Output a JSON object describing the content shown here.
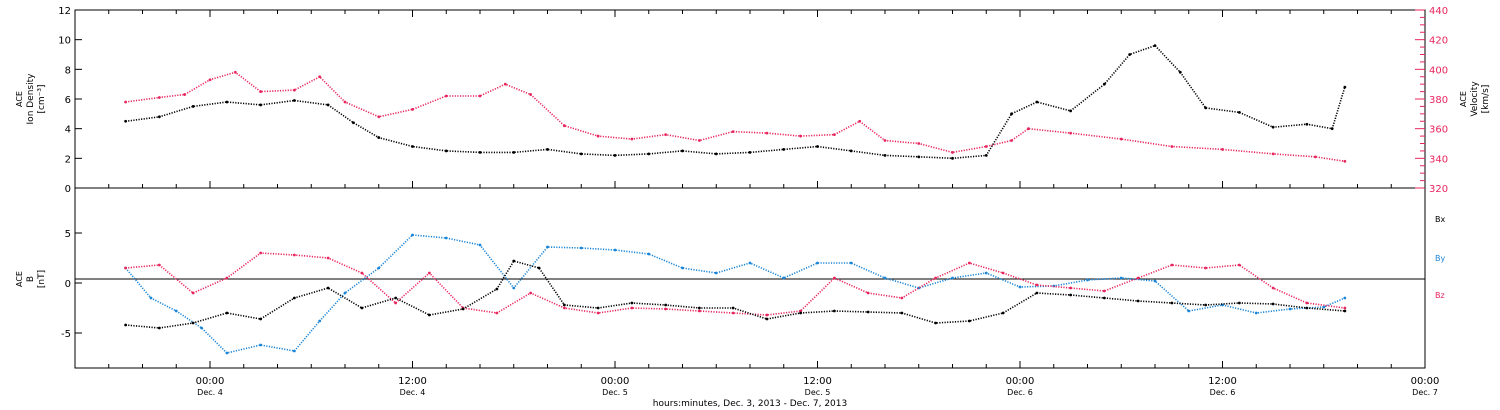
{
  "chart_data": [
    {
      "type": "scatter",
      "panel": "top",
      "ylabel_left": [
        "ACE",
        "Ion Density",
        "[cm⁻³]"
      ],
      "ylabel_right": [
        "ACE",
        "Velocity",
        "[km/s]"
      ],
      "ylim": [
        0,
        12
      ],
      "yticks": [
        0,
        2,
        4,
        6,
        8,
        10,
        12
      ],
      "y2lim": [
        320,
        440
      ],
      "y2ticks": [
        320,
        340,
        360,
        380,
        400,
        420,
        440
      ],
      "colors": {
        "density": "#000000",
        "velocity": "#e8265e"
      },
      "grid": false,
      "series": [
        {
          "name": "Ion Density",
          "color": "#000000",
          "points": [
            [
              "2013-12-03T19:00",
              4.5
            ],
            [
              "2013-12-03T21:00",
              4.8
            ],
            [
              "2013-12-03T23:00",
              5.5
            ],
            [
              "2013-12-04T01:00",
              5.8
            ],
            [
              "2013-12-04T03:00",
              5.6
            ],
            [
              "2013-12-04T05:00",
              5.9
            ],
            [
              "2013-12-04T07:00",
              5.6
            ],
            [
              "2013-12-04T08:30",
              4.4
            ],
            [
              "2013-12-04T10:00",
              3.4
            ],
            [
              "2013-12-04T12:00",
              2.8
            ],
            [
              "2013-12-04T14:00",
              2.5
            ],
            [
              "2013-12-04T16:00",
              2.4
            ],
            [
              "2013-12-04T18:00",
              2.4
            ],
            [
              "2013-12-04T20:00",
              2.6
            ],
            [
              "2013-12-04T22:00",
              2.3
            ],
            [
              "2013-12-05T00:00",
              2.2
            ],
            [
              "2013-12-05T02:00",
              2.3
            ],
            [
              "2013-12-05T04:00",
              2.5
            ],
            [
              "2013-12-05T06:00",
              2.3
            ],
            [
              "2013-12-05T08:00",
              2.4
            ],
            [
              "2013-12-05T10:00",
              2.6
            ],
            [
              "2013-12-05T12:00",
              2.8
            ],
            [
              "2013-12-05T14:00",
              2.5
            ],
            [
              "2013-12-05T16:00",
              2.2
            ],
            [
              "2013-12-05T18:00",
              2.1
            ],
            [
              "2013-12-05T20:00",
              2.0
            ],
            [
              "2013-12-05T22:00",
              2.2
            ],
            [
              "2013-12-05T23:30",
              5.0
            ],
            [
              "2013-12-06T01:00",
              5.8
            ],
            [
              "2013-12-06T03:00",
              5.2
            ],
            [
              "2013-12-06T05:00",
              7.0
            ],
            [
              "2013-12-06T06:30",
              9.0
            ],
            [
              "2013-12-06T08:00",
              9.6
            ],
            [
              "2013-12-06T09:30",
              7.8
            ],
            [
              "2013-12-06T11:00",
              5.4
            ],
            [
              "2013-12-06T13:00",
              5.1
            ],
            [
              "2013-12-06T15:00",
              4.1
            ],
            [
              "2013-12-06T17:00",
              4.3
            ],
            [
              "2013-12-06T18:30",
              4.0
            ],
            [
              "2013-12-06T19:15",
              6.8
            ]
          ]
        },
        {
          "name": "Velocity",
          "color": "#e8265e",
          "axis": "right",
          "points": [
            [
              "2013-12-03T19:00",
              378
            ],
            [
              "2013-12-03T21:00",
              381
            ],
            [
              "2013-12-03T22:30",
              383
            ],
            [
              "2013-12-04T00:00",
              393
            ],
            [
              "2013-12-04T01:30",
              398
            ],
            [
              "2013-12-04T03:00",
              385
            ],
            [
              "2013-12-04T05:00",
              386
            ],
            [
              "2013-12-04T06:30",
              395
            ],
            [
              "2013-12-04T08:00",
              378
            ],
            [
              "2013-12-04T10:00",
              368
            ],
            [
              "2013-12-04T12:00",
              373
            ],
            [
              "2013-12-04T14:00",
              382
            ],
            [
              "2013-12-04T16:00",
              382
            ],
            [
              "2013-12-04T17:30",
              390
            ],
            [
              "2013-12-04T19:00",
              383
            ],
            [
              "2013-12-04T21:00",
              362
            ],
            [
              "2013-12-04T23:00",
              355
            ],
            [
              "2013-12-05T01:00",
              353
            ],
            [
              "2013-12-05T03:00",
              356
            ],
            [
              "2013-12-05T05:00",
              352
            ],
            [
              "2013-12-05T07:00",
              358
            ],
            [
              "2013-12-05T09:00",
              357
            ],
            [
              "2013-12-05T11:00",
              355
            ],
            [
              "2013-12-05T13:00",
              356
            ],
            [
              "2013-12-05T14:30",
              365
            ],
            [
              "2013-12-05T16:00",
              352
            ],
            [
              "2013-12-05T18:00",
              350
            ],
            [
              "2013-12-05T20:00",
              344
            ],
            [
              "2013-12-05T22:00",
              348
            ],
            [
              "2013-12-05T23:30",
              352
            ],
            [
              "2013-12-06T00:30",
              360
            ],
            [
              "2013-12-06T03:00",
              357
            ],
            [
              "2013-12-06T06:00",
              353
            ],
            [
              "2013-12-06T09:00",
              348
            ],
            [
              "2013-12-06T12:00",
              346
            ],
            [
              "2013-12-06T15:00",
              343
            ],
            [
              "2013-12-06T17:30",
              341
            ],
            [
              "2013-12-06T19:15",
              338
            ]
          ]
        }
      ]
    },
    {
      "type": "scatter",
      "panel": "bottom",
      "ylabel_left": [
        "ACE",
        "B",
        "[nT]"
      ],
      "ylim": [
        -8.5,
        9.5
      ],
      "yticks": [
        -5,
        0,
        5
      ],
      "zero_line": true,
      "grid": false,
      "legend": {
        "placement": "right",
        "entries": [
          "Bx",
          "By",
          "Bz"
        ]
      },
      "series": [
        {
          "name": "Bx",
          "color": "#000000",
          "points": [
            [
              "2013-12-03T19:00",
              -4.2
            ],
            [
              "2013-12-03T21:00",
              -4.5
            ],
            [
              "2013-12-03T23:00",
              -4.0
            ],
            [
              "2013-12-04T01:00",
              -3.0
            ],
            [
              "2013-12-04T03:00",
              -3.6
            ],
            [
              "2013-12-04T05:00",
              -1.5
            ],
            [
              "2013-12-04T07:00",
              -0.5
            ],
            [
              "2013-12-04T09:00",
              -2.5
            ],
            [
              "2013-12-04T11:00",
              -1.5
            ],
            [
              "2013-12-04T13:00",
              -3.2
            ],
            [
              "2013-12-04T15:00",
              -2.6
            ],
            [
              "2013-12-04T17:00",
              -0.6
            ],
            [
              "2013-12-04T18:00",
              2.2
            ],
            [
              "2013-12-04T19:30",
              1.5
            ],
            [
              "2013-12-04T21:00",
              -2.2
            ],
            [
              "2013-12-04T23:00",
              -2.5
            ],
            [
              "2013-12-05T01:00",
              -2.0
            ],
            [
              "2013-12-05T03:00",
              -2.2
            ],
            [
              "2013-12-05T05:00",
              -2.5
            ],
            [
              "2013-12-05T07:00",
              -2.5
            ],
            [
              "2013-12-05T09:00",
              -3.6
            ],
            [
              "2013-12-05T11:00",
              -3.0
            ],
            [
              "2013-12-05T13:00",
              -2.8
            ],
            [
              "2013-12-05T15:00",
              -2.9
            ],
            [
              "2013-12-05T17:00",
              -3.0
            ],
            [
              "2013-12-05T19:00",
              -4.0
            ],
            [
              "2013-12-05T21:00",
              -3.8
            ],
            [
              "2013-12-05T23:00",
              -3.0
            ],
            [
              "2013-12-06T01:00",
              -1.0
            ],
            [
              "2013-12-06T03:00",
              -1.2
            ],
            [
              "2013-12-06T05:00",
              -1.5
            ],
            [
              "2013-12-06T07:00",
              -1.8
            ],
            [
              "2013-12-06T09:00",
              -2.0
            ],
            [
              "2013-12-06T11:00",
              -2.2
            ],
            [
              "2013-12-06T13:00",
              -2.0
            ],
            [
              "2013-12-06T15:00",
              -2.1
            ],
            [
              "2013-12-06T17:00",
              -2.5
            ],
            [
              "2013-12-06T19:15",
              -2.8
            ]
          ]
        },
        {
          "name": "By",
          "color": "#1a85d6",
          "points": [
            [
              "2013-12-03T19:00",
              1.5
            ],
            [
              "2013-12-03T20:30",
              -1.5
            ],
            [
              "2013-12-03T22:00",
              -2.8
            ],
            [
              "2013-12-03T23:30",
              -4.5
            ],
            [
              "2013-12-04T01:00",
              -7.0
            ],
            [
              "2013-12-04T03:00",
              -6.2
            ],
            [
              "2013-12-04T05:00",
              -6.8
            ],
            [
              "2013-12-04T06:30",
              -3.8
            ],
            [
              "2013-12-04T08:00",
              -1.0
            ],
            [
              "2013-12-04T10:00",
              1.5
            ],
            [
              "2013-12-04T12:00",
              4.8
            ],
            [
              "2013-12-04T14:00",
              4.5
            ],
            [
              "2013-12-04T16:00",
              3.8
            ],
            [
              "2013-12-04T18:00",
              -0.5
            ],
            [
              "2013-12-04T20:00",
              3.6
            ],
            [
              "2013-12-04T22:00",
              3.5
            ],
            [
              "2013-12-05T00:00",
              3.3
            ],
            [
              "2013-12-05T02:00",
              2.9
            ],
            [
              "2013-12-05T04:00",
              1.5
            ],
            [
              "2013-12-05T06:00",
              1.0
            ],
            [
              "2013-12-05T08:00",
              2.0
            ],
            [
              "2013-12-05T10:00",
              0.5
            ],
            [
              "2013-12-05T12:00",
              2.0
            ],
            [
              "2013-12-05T14:00",
              2.0
            ],
            [
              "2013-12-05T16:00",
              0.5
            ],
            [
              "2013-12-05T18:00",
              -0.5
            ],
            [
              "2013-12-05T20:00",
              0.5
            ],
            [
              "2013-12-05T22:00",
              1.0
            ],
            [
              "2013-12-06T00:00",
              -0.4
            ],
            [
              "2013-12-06T02:00",
              -0.3
            ],
            [
              "2013-12-06T04:00",
              0.3
            ],
            [
              "2013-12-06T06:00",
              0.5
            ],
            [
              "2013-12-06T08:00",
              0.2
            ],
            [
              "2013-12-06T10:00",
              -2.8
            ],
            [
              "2013-12-06T12:00",
              -2.2
            ],
            [
              "2013-12-06T14:00",
              -3.0
            ],
            [
              "2013-12-06T16:00",
              -2.6
            ],
            [
              "2013-12-06T18:00",
              -2.4
            ],
            [
              "2013-12-06T19:15",
              -1.5
            ]
          ]
        },
        {
          "name": "Bz",
          "color": "#e8265e",
          "points": [
            [
              "2013-12-03T19:00",
              1.5
            ],
            [
              "2013-12-03T21:00",
              1.8
            ],
            [
              "2013-12-03T23:00",
              -1.0
            ],
            [
              "2013-12-04T01:00",
              0.5
            ],
            [
              "2013-12-04T03:00",
              3.0
            ],
            [
              "2013-12-04T05:00",
              2.8
            ],
            [
              "2013-12-04T07:00",
              2.5
            ],
            [
              "2013-12-04T09:00",
              1.0
            ],
            [
              "2013-12-04T11:00",
              -2.0
            ],
            [
              "2013-12-04T13:00",
              1.0
            ],
            [
              "2013-12-04T15:00",
              -2.5
            ],
            [
              "2013-12-04T17:00",
              -3.0
            ],
            [
              "2013-12-04T19:00",
              -1.0
            ],
            [
              "2013-12-04T21:00",
              -2.5
            ],
            [
              "2013-12-04T23:00",
              -3.0
            ],
            [
              "2013-12-05T01:00",
              -2.5
            ],
            [
              "2013-12-05T03:00",
              -2.6
            ],
            [
              "2013-12-05T05:00",
              -2.8
            ],
            [
              "2013-12-05T07:00",
              -3.0
            ],
            [
              "2013-12-05T09:00",
              -3.2
            ],
            [
              "2013-12-05T11:00",
              -2.8
            ],
            [
              "2013-12-05T13:00",
              0.5
            ],
            [
              "2013-12-05T15:00",
              -1.0
            ],
            [
              "2013-12-05T17:00",
              -1.5
            ],
            [
              "2013-12-05T19:00",
              0.5
            ],
            [
              "2013-12-05T21:00",
              2.0
            ],
            [
              "2013-12-05T23:00",
              1.0
            ],
            [
              "2013-12-06T01:00",
              -0.2
            ],
            [
              "2013-12-06T03:00",
              -0.5
            ],
            [
              "2013-12-06T05:00",
              -0.8
            ],
            [
              "2013-12-06T07:00",
              0.5
            ],
            [
              "2013-12-06T09:00",
              1.8
            ],
            [
              "2013-12-06T11:00",
              1.5
            ],
            [
              "2013-12-06T13:00",
              1.8
            ],
            [
              "2013-12-06T15:00",
              -0.5
            ],
            [
              "2013-12-06T17:00",
              -2.0
            ],
            [
              "2013-12-06T19:15",
              -2.5
            ]
          ]
        }
      ]
    }
  ],
  "x_axis": {
    "xlim": [
      "2013-12-03T16:00",
      "2013-12-07T00:00"
    ],
    "ticks": [
      {
        "at": "2013-12-04T00:00",
        "time": "00:00",
        "date": "Dec. 4"
      },
      {
        "at": "2013-12-04T12:00",
        "time": "12:00",
        "date": "Dec. 4"
      },
      {
        "at": "2013-12-05T00:00",
        "time": "00:00",
        "date": "Dec. 5"
      },
      {
        "at": "2013-12-05T12:00",
        "time": "12:00",
        "date": "Dec. 5"
      },
      {
        "at": "2013-12-06T00:00",
        "time": "00:00",
        "date": "Dec. 6"
      },
      {
        "at": "2013-12-06T12:00",
        "time": "12:00",
        "date": "Dec. 6"
      },
      {
        "at": "2013-12-07T00:00",
        "time": "00:00",
        "date": "Dec. 7"
      }
    ],
    "label": "hours:minutes, Dec. 3, 2013 - Dec. 7, 2013"
  }
}
